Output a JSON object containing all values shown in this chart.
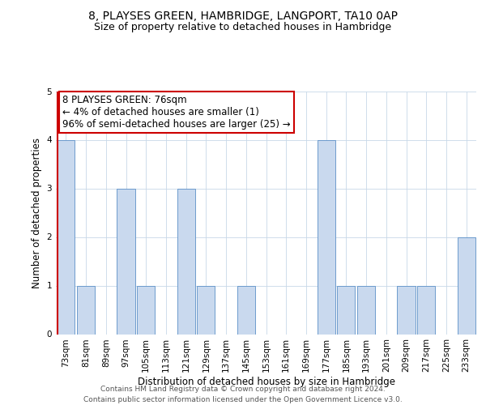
{
  "title": "8, PLAYSES GREEN, HAMBRIDGE, LANGPORT, TA10 0AP",
  "subtitle": "Size of property relative to detached houses in Hambridge",
  "xlabel": "Distribution of detached houses by size in Hambridge",
  "ylabel": "Number of detached properties",
  "bins": [
    "73sqm",
    "81sqm",
    "89sqm",
    "97sqm",
    "105sqm",
    "113sqm",
    "121sqm",
    "129sqm",
    "137sqm",
    "145sqm",
    "153sqm",
    "161sqm",
    "169sqm",
    "177sqm",
    "185sqm",
    "193sqm",
    "201sqm",
    "209sqm",
    "217sqm",
    "225sqm",
    "233sqm"
  ],
  "values": [
    4,
    1,
    0,
    3,
    1,
    0,
    3,
    1,
    0,
    1,
    0,
    0,
    0,
    4,
    1,
    1,
    0,
    1,
    1,
    0,
    2
  ],
  "bar_color": "#c9d9ee",
  "bar_edge_color": "#5b8fc7",
  "subject_line_color": "#cc0000",
  "annotation_box_color": "#ffffff",
  "annotation_border_color": "#cc0000",
  "annotation_text_line1": "8 PLAYSES GREEN: 76sqm",
  "annotation_text_line2": "← 4% of detached houses are smaller (1)",
  "annotation_text_line3": "96% of semi-detached houses are larger (25) →",
  "ylim": [
    0,
    5
  ],
  "yticks": [
    0,
    1,
    2,
    3,
    4,
    5
  ],
  "footer_line1": "Contains HM Land Registry data © Crown copyright and database right 2024.",
  "footer_line2": "Contains public sector information licensed under the Open Government Licence v3.0.",
  "bg_color": "#ffffff",
  "grid_color": "#c8d8e8",
  "title_fontsize": 10,
  "subtitle_fontsize": 9,
  "axis_label_fontsize": 8.5,
  "tick_fontsize": 7.5,
  "annotation_fontsize": 8.5,
  "footer_fontsize": 6.5
}
